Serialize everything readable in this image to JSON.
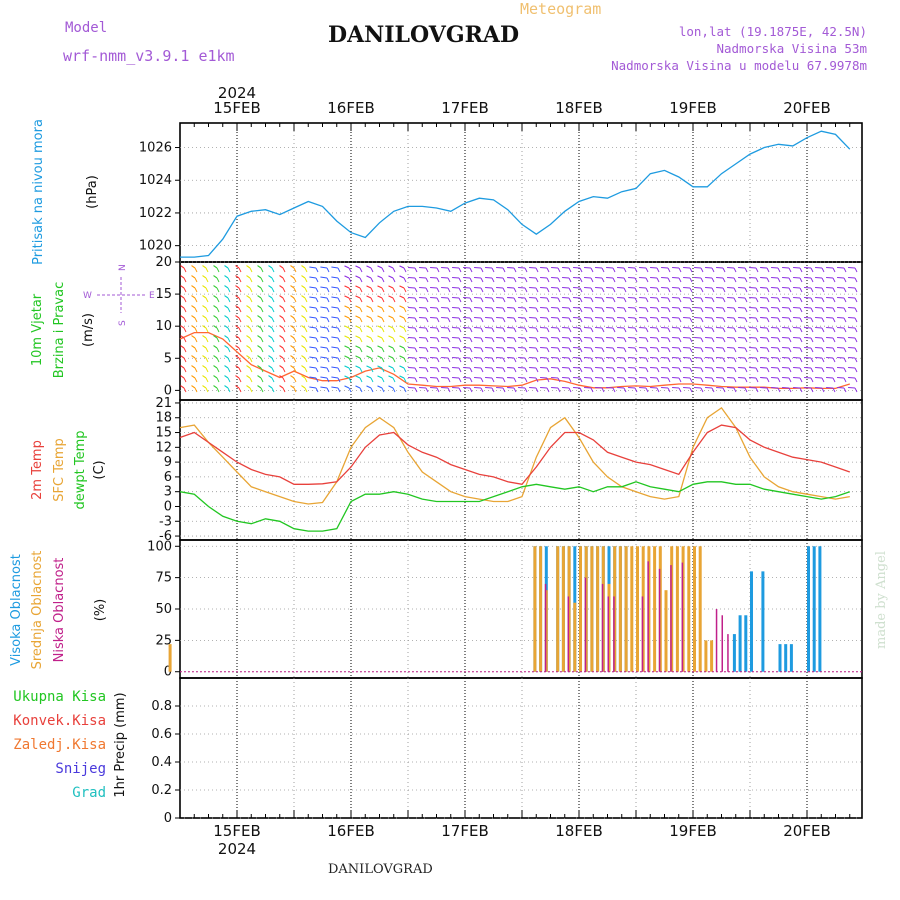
{
  "header": {
    "model_label": "Model",
    "model_name": "wrf-nmm_v3.9.1 e1km",
    "title": "DANILOVGRAD",
    "subtitle": "Meteogram",
    "lonlat": "lon,lat (19.1875E, 42.5N)",
    "elevation": "Nadmorska Visina 53m",
    "model_elevation": "Nadmorska Visina u modelu 67.9978m",
    "footer_title": "DANILOVGRAD",
    "credit": "made by Angel"
  },
  "colors": {
    "pressure": "#1e9be0",
    "temp2m": "#e8413c",
    "sfc_temp": "#e8a535",
    "dewpoint": "#22c622",
    "high_cloud": "#1e9be0",
    "mid_cloud": "#e8a535",
    "low_cloud": "#c0208a",
    "wind_barb": "#8a2be2",
    "total_precip": "#22c622",
    "conv_precip": "#e8413c",
    "frozen_precip": "#f07830",
    "snow": "#4a3adc",
    "graupel": "#20c0c0"
  },
  "time_axis": {
    "year": "2024",
    "labels": [
      "15FEB",
      "16FEB",
      "17FEB",
      "18FEB",
      "19FEB",
      "20FEB"
    ]
  },
  "wind_legend": {
    "n": "N",
    "s": "S",
    "e": "E",
    "w": "W"
  },
  "chart_data": [
    {
      "id": "pressure",
      "type": "line",
      "ylabel": "Pritisak na nivou mora",
      "unit": "(hPa)",
      "ylim": [
        1019,
        1027.5
      ],
      "yticks": [
        1020,
        1022,
        1024,
        1026
      ],
      "x_start_days": -0.5,
      "x_step_days": 0.125,
      "series": [
        {
          "key": "pressure",
          "values": [
            1019.3,
            1019.3,
            1019.4,
            1020.4,
            1021.8,
            1022.1,
            1022.2,
            1021.9,
            1022.3,
            1022.7,
            1022.4,
            1021.5,
            1020.8,
            1020.5,
            1021.4,
            1022.1,
            1022.4,
            1022.4,
            1022.3,
            1022.1,
            1022.6,
            1022.9,
            1022.8,
            1022.2,
            1021.3,
            1020.7,
            1021.3,
            1022.1,
            1022.7,
            1023.0,
            1022.9,
            1023.3,
            1023.5,
            1024.4,
            1024.6,
            1024.2,
            1023.6,
            1023.6,
            1024.4,
            1025.0,
            1025.6,
            1026.0,
            1026.2,
            1026.1,
            1026.6,
            1027.0,
            1026.8,
            1025.9,
            1025.0,
            1024.9,
            1025.4,
            1025.8,
            1025.7,
            1025.5,
            1024.7,
            1024.8,
            1024.7,
            1024.0,
            1022.9,
            1022.2,
            1022.5,
            1022.4,
            1022.0,
            1021.6,
            1021.3,
            1021.6,
            1022.1,
            1022.1,
            1021.5,
            1020.9
          ]
        }
      ]
    },
    {
      "id": "wind",
      "type": "line",
      "ylabel": "10m Vjetar",
      "ylabel2": "Brzina i Pravac",
      "unit": "(m/s)",
      "ylim": [
        -1.5,
        20
      ],
      "yticks": [
        0,
        5,
        10,
        15,
        20
      ],
      "x_start_days": -0.5,
      "x_step_days": 0.125,
      "series": [
        {
          "key": "wind_speed",
          "values": [
            8,
            9,
            9,
            8,
            6,
            4,
            3,
            2,
            3,
            2,
            1.5,
            1.5,
            2,
            3,
            3.5,
            2.5,
            1,
            0.8,
            0.6,
            0.6,
            0.8,
            0.8,
            0.7,
            0.6,
            0.8,
            1.6,
            1.8,
            1.4,
            0.8,
            0.4,
            0.4,
            0.6,
            0.7,
            0.6,
            0.8,
            1.0,
            1.0,
            0.8,
            0.6,
            0.5,
            0.5,
            0.5,
            0.3,
            0.3,
            0.4,
            0.3,
            0.3,
            1.0,
            2.0,
            2.5,
            2.0,
            1.0,
            0.5,
            0.4,
            0.4,
            0.3,
            0.3,
            0.2,
            0.4,
            0.8,
            1.5,
            2.0,
            1.5,
            1.0,
            0.6,
            0.6,
            0.8,
            0.9,
            0.7,
            0.6
          ]
        }
      ]
    },
    {
      "id": "temperature",
      "type": "line",
      "ylabel": "2m Temp",
      "ylabel2": "SFC Temp",
      "ylabel3": "dewpt Temp",
      "unit": "(C)",
      "ylim": [
        -6.8,
        21.6
      ],
      "yticks": [
        -6,
        -3,
        0,
        3,
        6,
        9,
        12,
        15,
        18,
        21
      ],
      "x_start_days": -0.5,
      "x_step_days": 0.125,
      "series": [
        {
          "key": "temp2m",
          "values": [
            14,
            15,
            13,
            11,
            9,
            7.5,
            6.5,
            6,
            4.5,
            4.5,
            4.6,
            5,
            8,
            12,
            14.5,
            15,
            12.5,
            11,
            10,
            8.5,
            7.5,
            6.5,
            6,
            5,
            4.5,
            8,
            12,
            15,
            15,
            13.5,
            11,
            10,
            9,
            8.5,
            7.5,
            6.5,
            11,
            15,
            16.5,
            16,
            13.5,
            12,
            11,
            10,
            9.5,
            9,
            8,
            7,
            11.5,
            15,
            17,
            16,
            13.5,
            12,
            11,
            10.5,
            10,
            9.5,
            8.5,
            8,
            12,
            16,
            17,
            16,
            13.5,
            12,
            10.5,
            9,
            7.5,
            7.5
          ]
        },
        {
          "key": "sfc_temp",
          "values": [
            16,
            16.5,
            13,
            10,
            7,
            4,
            3,
            2,
            1,
            0.5,
            0.8,
            5,
            12,
            16,
            18,
            16,
            11,
            7,
            5,
            3,
            2,
            1.5,
            1,
            1,
            2,
            10,
            16,
            18,
            14,
            9,
            6,
            4,
            3,
            2,
            1.5,
            2,
            12,
            18,
            20,
            16,
            10,
            6,
            4,
            3,
            2.5,
            2,
            1.5,
            2,
            14,
            19,
            21,
            15,
            9,
            6,
            4.5,
            3.5,
            3,
            2.5,
            2,
            2,
            14,
            19,
            21,
            15,
            9,
            6,
            4,
            3,
            3.5,
            4
          ]
        },
        {
          "key": "dewpoint",
          "values": [
            3,
            2.5,
            0,
            -2,
            -3,
            -3.5,
            -2.5,
            -3,
            -4.5,
            -5,
            -5,
            -4.5,
            1,
            2.5,
            2.5,
            3,
            2.5,
            1.5,
            1,
            1,
            1,
            1,
            2,
            3,
            4,
            4.5,
            4,
            3.5,
            4,
            3,
            4,
            4,
            5,
            4,
            3.5,
            3,
            4.5,
            5,
            5,
            4.5,
            4.5,
            3.5,
            3,
            2.5,
            2,
            1.5,
            2,
            3,
            5,
            6,
            7,
            8,
            6.5,
            5.5,
            7.5,
            7.5,
            7,
            6,
            5,
            4.5,
            7,
            7,
            5.5,
            6,
            6,
            5,
            2.5,
            1.5,
            3,
            5
          ]
        }
      ]
    },
    {
      "id": "clouds",
      "type": "bar",
      "ylabel": "Visoka Oblacnost",
      "ylabel2": "Srednja Oblacnost",
      "ylabel3": "Niska Oblacnost",
      "unit": "(%)",
      "ylim": [
        -5,
        105
      ],
      "yticks": [
        0,
        25,
        50,
        75,
        100
      ],
      "series": [
        {
          "key": "high_cloud",
          "x": [
            3.1,
            3.15,
            3.2,
            3.3,
            3.35,
            3.4,
            3.45,
            3.5,
            3.55,
            3.6,
            3.65,
            3.7,
            3.75,
            3.8,
            3.85,
            3.9,
            4.1,
            4.8,
            4.9,
            4.95,
            5.0,
            5.05,
            5.1,
            5.15,
            5.2,
            5.25,
            5.3,
            5.35,
            5.4,
            5.45,
            5.5,
            5.55,
            5.6,
            5.65,
            5.7,
            5.75,
            5.8,
            5.85,
            5.9,
            5.95,
            6.0,
            6.05,
            6.1,
            6.15,
            6.2,
            6.25,
            6.3,
            6.35,
            6.4,
            6.45,
            6.5,
            6.55,
            6.6,
            6.65,
            6.7,
            6.75,
            6.8,
            6.85,
            6.9,
            6.95,
            7.0,
            7.05,
            7.1,
            7.15,
            7.2,
            7.25,
            7.3,
            7.35,
            7.4,
            7.45,
            7.5
          ],
          "values": [
            100,
            100,
            100,
            100,
            100,
            100,
            100,
            100,
            100,
            100,
            100,
            100,
            100,
            100,
            100,
            100,
            0,
            0,
            0,
            0,
            0,
            0,
            0,
            0,
            0,
            0,
            0,
            0,
            0,
            0,
            0,
            0,
            0,
            0,
            0,
            0,
            0,
            0,
            0,
            0,
            0,
            0,
            0,
            0,
            0,
            0,
            0,
            0,
            0,
            0,
            0,
            0,
            0,
            0,
            0,
            0,
            0,
            0,
            0,
            0,
            0,
            0,
            0,
            0,
            0,
            0,
            0,
            0,
            0,
            0,
            0
          ]
        },
        {
          "key": "mid_cloud",
          "x": [
            -0.1,
            3.1,
            3.15,
            3.2,
            3.3,
            3.35,
            3.4,
            3.45,
            3.5,
            3.55,
            3.6,
            3.65,
            3.7,
            3.75,
            3.8,
            3.85,
            3.9,
            3.95,
            4.0,
            4.05,
            4.1,
            4.15,
            4.2,
            4.25,
            4.3,
            4.35,
            4.4,
            4.45,
            4.5,
            4.55,
            4.6,
            4.65,
            4.7,
            4.75,
            4.8,
            4.85,
            4.9,
            4.95,
            5.0,
            5.05,
            5.1,
            5.15,
            5.2,
            5.25,
            5.3,
            5.35,
            5.4,
            5.45,
            5.5,
            5.55,
            5.6,
            5.65,
            5.7,
            5.75,
            5.8,
            5.85,
            5.9,
            5.95,
            6.0,
            6.05,
            6.1,
            6.15,
            6.2,
            6.25,
            6.3,
            6.35,
            6.4,
            6.45,
            6.5,
            6.55,
            6.6
          ],
          "values": [
            22,
            100,
            100,
            65,
            100,
            100,
            100,
            55,
            100,
            100,
            100,
            100,
            100,
            70,
            100,
            100,
            100,
            100,
            100,
            100,
            100,
            100,
            100,
            65,
            100,
            100,
            100,
            100,
            100,
            100,
            25,
            25,
            0,
            0,
            0,
            0,
            0,
            0,
            0,
            0,
            0,
            0,
            0,
            0,
            0,
            0,
            0,
            0,
            0,
            0,
            0,
            0,
            0,
            0,
            0,
            0,
            0,
            0,
            0,
            0,
            0,
            0,
            0,
            0,
            0,
            0,
            0,
            0,
            0,
            0,
            0
          ]
        },
        {
          "key": "low_cloud",
          "x": [
            3.2,
            3.4,
            3.55,
            3.7,
            3.75,
            3.8,
            4.05,
            4.1,
            4.2,
            4.3,
            4.4,
            4.7,
            4.75,
            4.8
          ],
          "values": [
            70,
            60,
            75,
            70,
            60,
            60,
            60,
            88,
            82,
            85,
            87,
            50,
            45,
            30
          ]
        },
        {
          "key": "high_cloud_late",
          "x": [
            4.85,
            4.9,
            4.95,
            5.0,
            5.1,
            5.25,
            5.3,
            5.35,
            5.5,
            5.55,
            5.6
          ],
          "values": [
            30,
            45,
            45,
            80,
            80,
            22,
            22,
            22,
            100,
            100,
            100
          ]
        }
      ]
    },
    {
      "id": "precip",
      "type": "bar",
      "ylabel": "1hr Precip",
      "unit": "(mm)",
      "ylim": [
        0,
        1.0
      ],
      "yticks": [
        0,
        0.2,
        0.4,
        0.6,
        0.8
      ],
      "series_names": [
        "Ukupna Kisa",
        "Konvek.Kisa",
        "Zaledj.Kisa",
        "Snijeg",
        "Grad"
      ],
      "values": []
    }
  ]
}
